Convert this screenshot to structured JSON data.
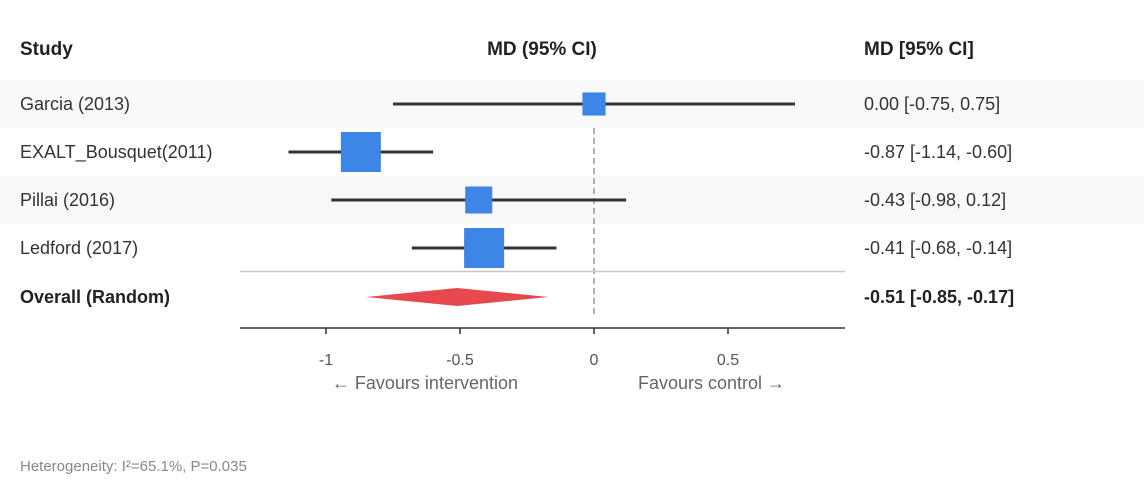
{
  "headers": {
    "study": "Study",
    "plot": "MD (95% CI)",
    "estimate": "MD [95% CI]"
  },
  "chart_data": {
    "type": "forest",
    "measure": "MD",
    "xlim": [
      -1.33,
      0.93
    ],
    "ticks": [
      {
        "value": -1,
        "label": "-1"
      },
      {
        "value": -0.5,
        "label": "-0.5"
      },
      {
        "value": 0,
        "label": "0"
      },
      {
        "value": 0.5,
        "label": "0.5"
      }
    ],
    "null_line": 0,
    "favours_left": "← Favours intervention",
    "favours_right": "Favours control →",
    "studies": [
      {
        "name": "Garcia (2013)",
        "md": 0.0,
        "lower": -0.75,
        "upper": 0.75,
        "ci_text": "0.00 [-0.75, 0.75]",
        "weight": 0.35
      },
      {
        "name": "EXALT_Bousquet(2011)",
        "md": -0.87,
        "lower": -1.14,
        "upper": -0.6,
        "ci_text": "-0.87 [-1.14, -0.60]",
        "weight": 1.0
      },
      {
        "name": "Pillai (2016)",
        "md": -0.43,
        "lower": -0.98,
        "upper": 0.12,
        "ci_text": "-0.43 [-0.98, 0.12]",
        "weight": 0.5
      },
      {
        "name": "Ledford (2017)",
        "md": -0.41,
        "lower": -0.68,
        "upper": -0.14,
        "ci_text": "-0.41 [-0.68, -0.14]",
        "weight": 1.0
      }
    ],
    "overall": {
      "name": "Overall (Random)",
      "md": -0.51,
      "lower": -0.85,
      "upper": -0.17,
      "ci_text": "-0.51 [-0.85, -0.17]"
    },
    "heterogeneity": "Heterogeneity: I²=65.1%, P=0.035"
  },
  "colors": {
    "square": "#3d85e6",
    "diamond": "#e5484d",
    "ci_line": "#333333",
    "row_stripe": "#f7f9fb"
  }
}
